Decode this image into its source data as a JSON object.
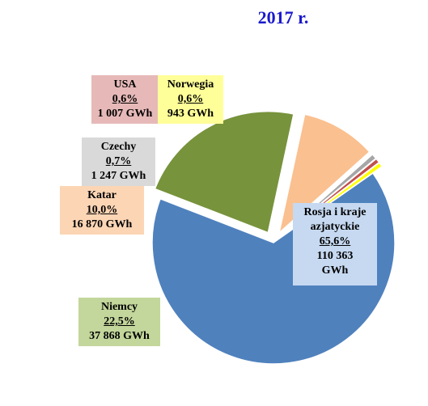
{
  "chart_data": {
    "type": "pie",
    "title": "2017 r.",
    "slices": [
      {
        "name_lines": [
          "Rosja i kraje",
          "azjatyckie"
        ],
        "percent": 65.6,
        "percent_label": "65,6%",
        "value_lines": [
          "110 363",
          "GWh"
        ],
        "value": 110363,
        "unit": "GWh",
        "color": "#4f81bd",
        "label_bg": "#c6d9f1"
      },
      {
        "name_lines": [
          "Niemcy"
        ],
        "percent": 22.5,
        "percent_label": "22,5%",
        "value_lines": [
          "37 868 GWh"
        ],
        "value": 37868,
        "unit": "GWh",
        "color": "#77933c",
        "label_bg": "#c3d69b"
      },
      {
        "name_lines": [
          "Katar"
        ],
        "percent": 10.0,
        "percent_label": "10,0%",
        "value_lines": [
          "16 870 GWh"
        ],
        "value": 16870,
        "unit": "GWh",
        "color": "#fac090",
        "label_bg": "#fcd5b5"
      },
      {
        "name_lines": [
          "Czechy"
        ],
        "percent": 0.7,
        "percent_label": "0,7%",
        "value_lines": [
          "1 247 GWh"
        ],
        "value": 1247,
        "unit": "GWh",
        "color": "#a6a6a6",
        "label_bg": "#d9d9d9"
      },
      {
        "name_lines": [
          "USA"
        ],
        "percent": 0.6,
        "percent_label": "0,6%",
        "value_lines": [
          "1 007 GWh"
        ],
        "value": 1007,
        "unit": "GWh",
        "color": "#c0504d",
        "label_bg": "#e6b9b8"
      },
      {
        "name_lines": [
          "Norwegia"
        ],
        "percent": 0.6,
        "percent_label": "0,6%",
        "value_lines": [
          "943 GWh"
        ],
        "value": 943,
        "unit": "GWh",
        "color": "#ffff00",
        "label_bg": "#ffff99"
      }
    ],
    "legend": "none"
  }
}
